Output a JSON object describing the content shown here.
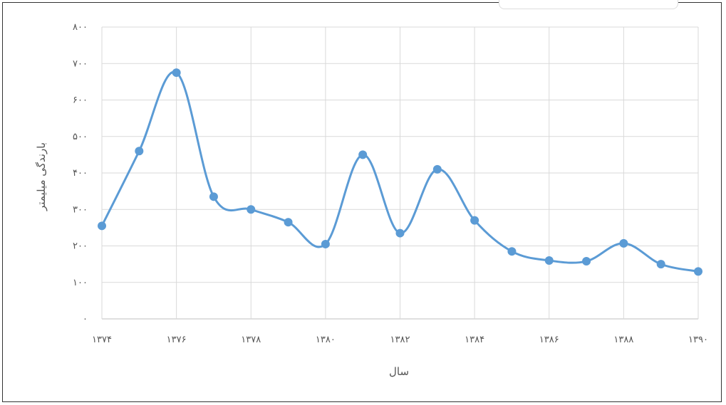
{
  "chart_data": {
    "type": "line",
    "title": "",
    "xlabel": "سال",
    "ylabel": "بارندگی میلیمتر",
    "x": [
      1374,
      1375,
      1376,
      1377,
      1378,
      1379,
      1380,
      1381,
      1382,
      1383,
      1384,
      1385,
      1386,
      1387,
      1388,
      1389,
      1390
    ],
    "x_tick_labels": [
      "۱۳۷۴",
      "۱۳۷۶",
      "۱۳۷۸",
      "۱۳۸۰",
      "۱۳۸۲",
      "۱۳۸۴",
      "۱۳۸۶",
      "۱۳۸۸",
      "۱۳۹۰"
    ],
    "y_tick_labels": [
      "۰",
      "۱۰۰",
      "۲۰۰",
      "۳۰۰",
      "۴۰۰",
      "۵۰۰",
      "۶۰۰",
      "۷۰۰",
      "۸۰۰"
    ],
    "ylim": [
      0,
      800
    ],
    "grid": true,
    "series": [
      {
        "values": [
          255,
          460,
          675,
          335,
          300,
          265,
          205,
          450,
          235,
          410,
          270,
          185,
          160,
          158,
          207,
          150,
          130
        ]
      }
    ],
    "colors": {
      "line": "#5B9BD5",
      "grid": "#d9d9d9"
    }
  }
}
